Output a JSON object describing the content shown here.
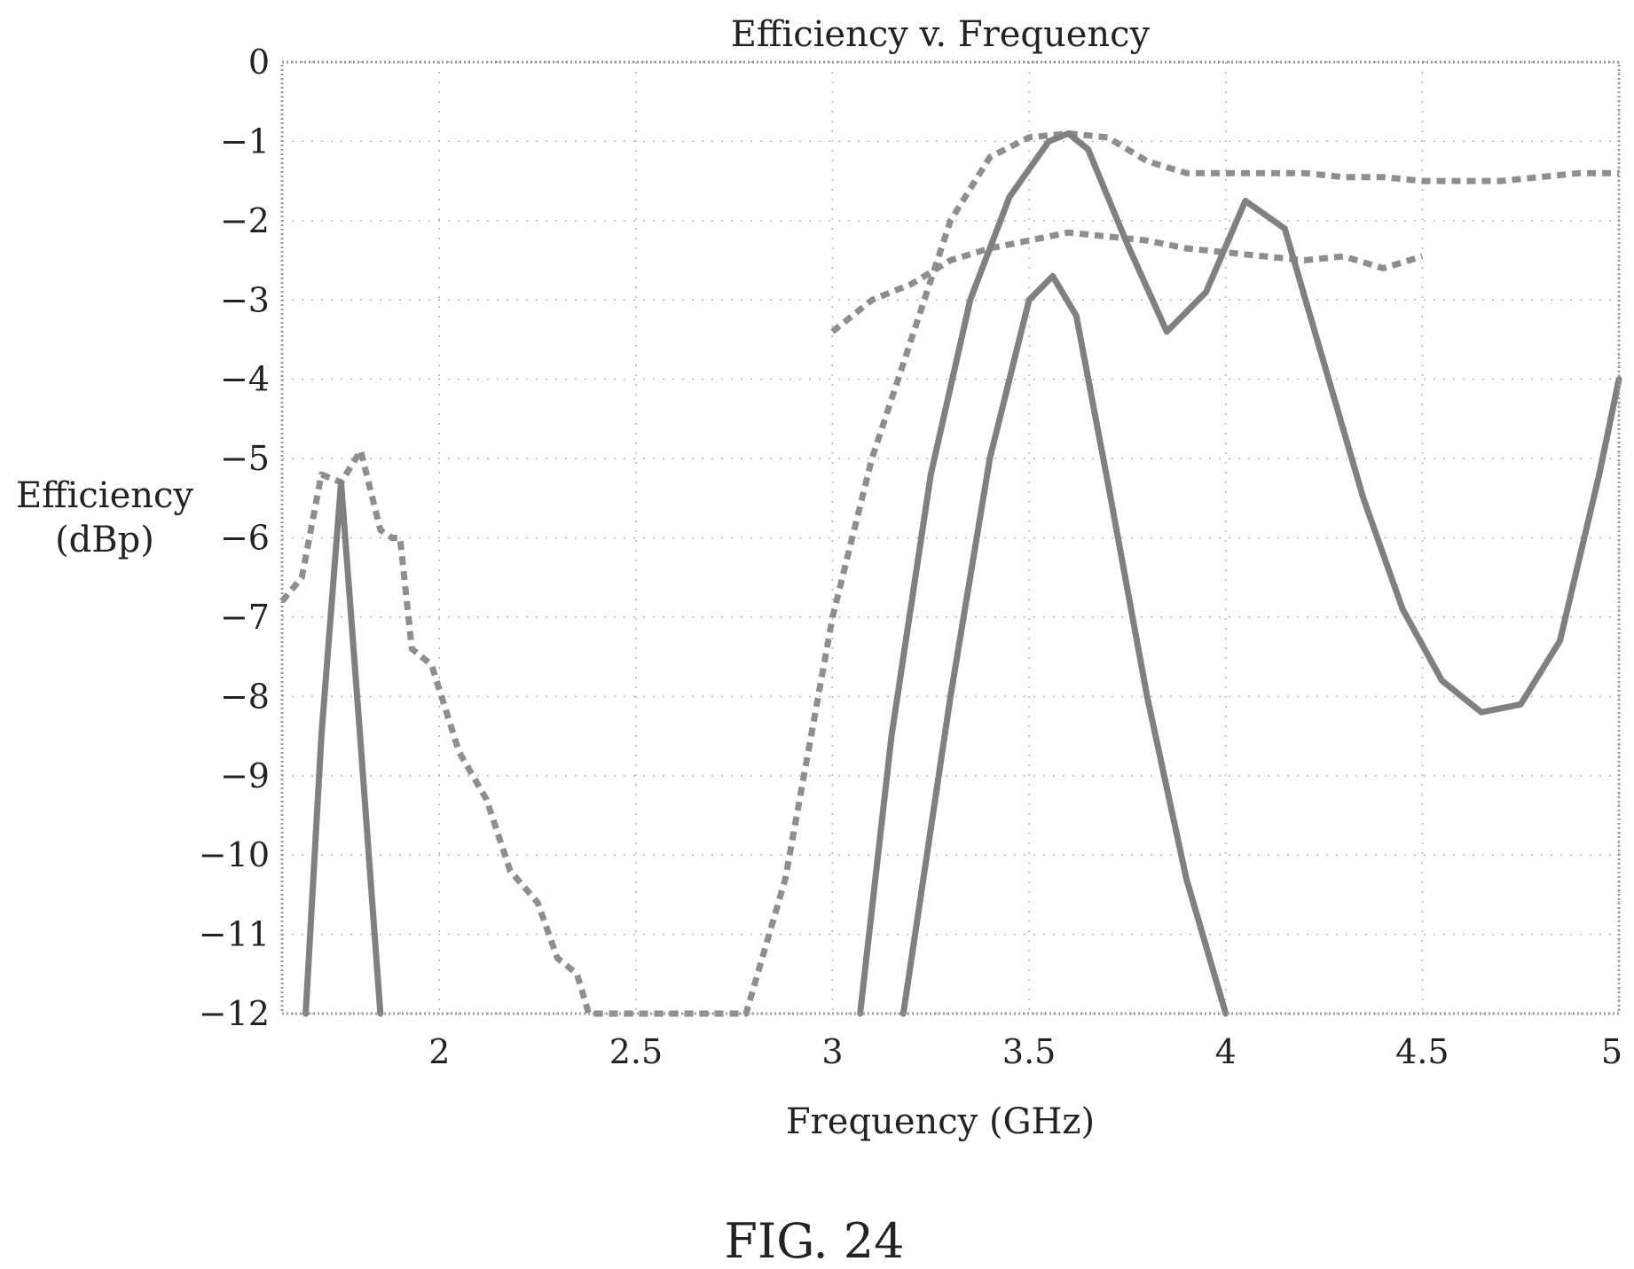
{
  "chart_data": {
    "type": "line",
    "title": "Efficiency v. Frequency",
    "xlabel": "Frequency (GHz)",
    "ylabel_lines": [
      "Efficiency",
      "(dBp)"
    ],
    "xlim": [
      1.6,
      5.0
    ],
    "ylim": [
      -12,
      0
    ],
    "x_ticks": [
      2,
      2.5,
      3,
      3.5,
      4,
      4.5,
      5
    ],
    "x_tick_labels": [
      "2",
      "2.5",
      "3",
      "3.5",
      "4",
      "4.5",
      "5"
    ],
    "y_ticks": [
      0,
      -1,
      -2,
      -3,
      -4,
      -5,
      -6,
      -7,
      -8,
      -9,
      -10,
      -11,
      -12
    ],
    "y_tick_labels": [
      "0",
      "−1",
      "−2",
      "−3",
      "−4",
      "−5",
      "−6",
      "−7",
      "−8",
      "−9",
      "−10",
      "−11",
      "−12"
    ],
    "grid": true,
    "series": [
      {
        "style": "dashed",
        "points": [
          [
            1.6,
            -6.8
          ],
          [
            1.65,
            -6.5
          ],
          [
            1.7,
            -5.2
          ],
          [
            1.75,
            -5.3
          ],
          [
            1.8,
            -4.9
          ],
          [
            1.85,
            -5.9
          ],
          [
            1.88,
            -6.0
          ],
          [
            1.9,
            -6.0
          ],
          [
            1.93,
            -7.4
          ],
          [
            1.98,
            -7.6
          ],
          [
            2.05,
            -8.7
          ],
          [
            2.12,
            -9.3
          ],
          [
            2.18,
            -10.2
          ],
          [
            2.25,
            -10.6
          ],
          [
            2.3,
            -11.3
          ],
          [
            2.35,
            -11.5
          ],
          [
            2.38,
            -12.0
          ],
          [
            2.5,
            -12.0
          ],
          [
            2.78,
            -12.0
          ],
          [
            2.88,
            -10.3
          ],
          [
            3.0,
            -7.0
          ],
          [
            3.1,
            -5.0
          ],
          [
            3.2,
            -3.5
          ],
          [
            3.3,
            -2.0
          ],
          [
            3.4,
            -1.2
          ],
          [
            3.5,
            -0.95
          ],
          [
            3.6,
            -0.9
          ],
          [
            3.7,
            -0.95
          ],
          [
            3.8,
            -1.25
          ],
          [
            3.9,
            -1.4
          ],
          [
            4.0,
            -1.4
          ],
          [
            4.1,
            -1.4
          ],
          [
            4.2,
            -1.4
          ],
          [
            4.3,
            -1.45
          ],
          [
            4.4,
            -1.45
          ],
          [
            4.5,
            -1.5
          ],
          [
            4.6,
            -1.5
          ],
          [
            4.7,
            -1.5
          ],
          [
            4.8,
            -1.45
          ],
          [
            4.9,
            -1.4
          ],
          [
            5.0,
            -1.4
          ]
        ]
      },
      {
        "style": "dashed",
        "points": [
          [
            3.0,
            -3.4
          ],
          [
            3.1,
            -3.0
          ],
          [
            3.2,
            -2.8
          ],
          [
            3.3,
            -2.5
          ],
          [
            3.4,
            -2.35
          ],
          [
            3.5,
            -2.25
          ],
          [
            3.6,
            -2.15
          ],
          [
            3.7,
            -2.2
          ],
          [
            3.8,
            -2.25
          ],
          [
            3.9,
            -2.35
          ],
          [
            4.0,
            -2.4
          ],
          [
            4.1,
            -2.45
          ],
          [
            4.2,
            -2.5
          ],
          [
            4.3,
            -2.45
          ],
          [
            4.4,
            -2.6
          ],
          [
            4.5,
            -2.45
          ]
        ]
      },
      {
        "style": "solid",
        "points": [
          [
            1.66,
            -12.0
          ],
          [
            1.7,
            -8.5
          ],
          [
            1.75,
            -5.3
          ],
          [
            1.8,
            -8.6
          ],
          [
            1.85,
            -12.0
          ]
        ]
      },
      {
        "style": "solid",
        "points": [
          [
            3.07,
            -12.0
          ],
          [
            3.15,
            -8.5
          ],
          [
            3.25,
            -5.2
          ],
          [
            3.35,
            -3.0
          ],
          [
            3.45,
            -1.7
          ],
          [
            3.55,
            -1.0
          ],
          [
            3.6,
            -0.9
          ],
          [
            3.65,
            -1.1
          ],
          [
            3.75,
            -2.3
          ],
          [
            3.85,
            -3.4
          ],
          [
            3.95,
            -2.9
          ],
          [
            4.05,
            -1.75
          ],
          [
            4.15,
            -2.1
          ],
          [
            4.25,
            -3.8
          ],
          [
            4.35,
            -5.5
          ],
          [
            4.45,
            -6.9
          ],
          [
            4.55,
            -7.8
          ],
          [
            4.65,
            -8.2
          ],
          [
            4.75,
            -8.1
          ],
          [
            4.85,
            -7.3
          ],
          [
            4.95,
            -5.2
          ],
          [
            5.0,
            -4.0
          ]
        ]
      },
      {
        "style": "solid",
        "points": [
          [
            3.18,
            -12.0
          ],
          [
            3.3,
            -8.0
          ],
          [
            3.4,
            -5.0
          ],
          [
            3.5,
            -3.0
          ],
          [
            3.56,
            -2.7
          ],
          [
            3.62,
            -3.2
          ],
          [
            3.7,
            -5.3
          ],
          [
            3.8,
            -8.0
          ],
          [
            3.9,
            -10.3
          ],
          [
            4.0,
            -12.0
          ]
        ]
      }
    ]
  },
  "figure": {
    "caption": "FIG. 24"
  }
}
